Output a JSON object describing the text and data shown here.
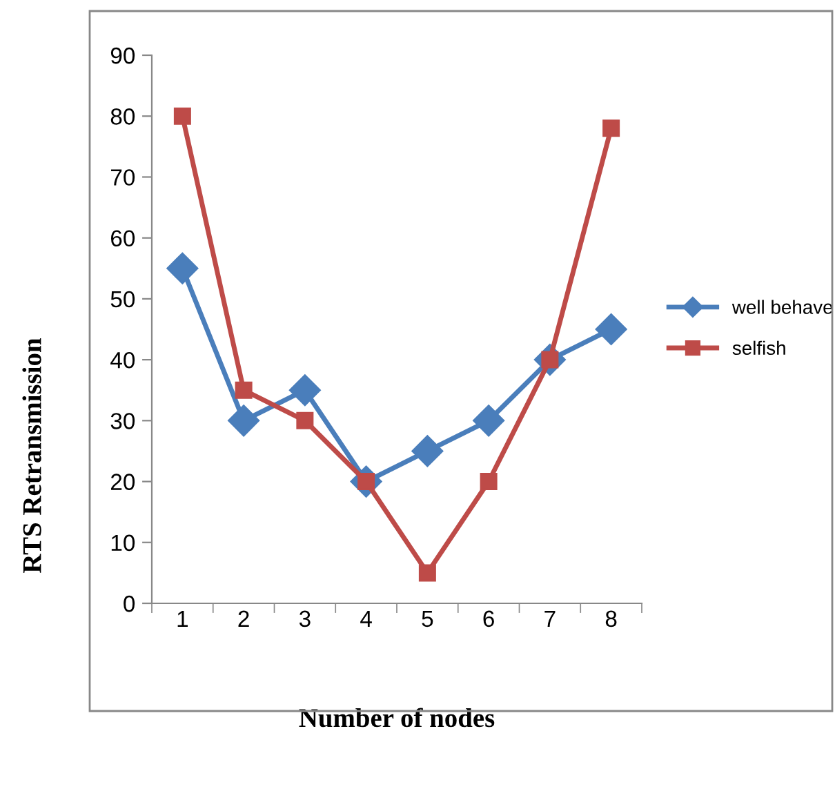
{
  "chart_data": {
    "type": "line",
    "xlabel": "Number of nodes",
    "ylabel": "RTS Retransmission",
    "categories": [
      "1",
      "2",
      "3",
      "4",
      "5",
      "6",
      "7",
      "8"
    ],
    "series": [
      {
        "name": "well behave",
        "color": "#4a7ebb",
        "marker": "diamond",
        "values": [
          55,
          30,
          35,
          20,
          25,
          30,
          40,
          45
        ]
      },
      {
        "name": "selfish",
        "color": "#be4b48",
        "marker": "square",
        "values": [
          80,
          35,
          30,
          20,
          5,
          20,
          40,
          78
        ]
      }
    ],
    "ylim": [
      0,
      90
    ],
    "yticks": [
      0,
      10,
      20,
      30,
      40,
      50,
      60,
      70,
      80,
      90
    ],
    "grid": false,
    "legend": "right",
    "line_style": "solid"
  }
}
